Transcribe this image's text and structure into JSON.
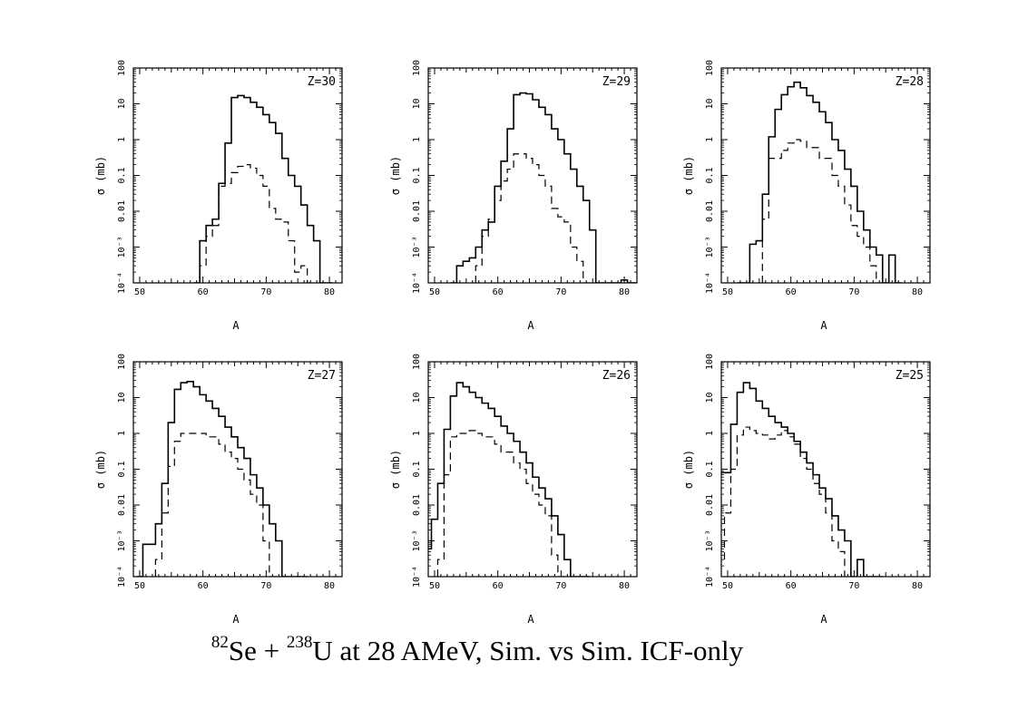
{
  "caption": {
    "se_mass": "82",
    "se_symbol": "Se + ",
    "u_mass": "238",
    "u_rest": "U at 28 AMeV, Sim. vs Sim. ICF-only"
  },
  "chart_data": [
    {
      "type": "line",
      "panel_label": "Z=30",
      "xlabel": "A",
      "ylabel": "σ (mb)",
      "xlim": [
        49,
        82
      ],
      "ylim": [
        0.0001,
        100
      ],
      "yscale": "log",
      "x_ticks": [
        50,
        60,
        70,
        80
      ],
      "y_ticks": [
        "10⁻⁴",
        "10⁻³",
        "0.01",
        "0.1",
        "1",
        "10",
        "100"
      ],
      "series": [
        {
          "style": "solid",
          "x": [
            59,
            60,
            61,
            62,
            63,
            64,
            65,
            66,
            67,
            68,
            69,
            70,
            71,
            72,
            73,
            74,
            75,
            76,
            77,
            78,
            79,
            80
          ],
          "y": [
            0.0001,
            0.0015,
            0.004,
            0.006,
            0.06,
            0.8,
            15,
            17,
            15,
            11,
            8,
            5,
            3,
            1.5,
            0.3,
            0.1,
            0.05,
            0.015,
            0.004,
            0.0015,
            0.0001,
            0.0001
          ]
        },
        {
          "style": "dashed",
          "x": [
            60,
            61,
            62,
            63,
            64,
            65,
            66,
            67,
            68,
            69,
            70,
            71,
            72,
            73,
            74,
            75,
            76,
            77
          ],
          "y": [
            0.0003,
            0.002,
            0.004,
            0.05,
            0.06,
            0.12,
            0.18,
            0.2,
            0.16,
            0.1,
            0.05,
            0.012,
            0.006,
            0.005,
            0.0015,
            0.0002,
            0.0003,
            0.0001
          ]
        }
      ]
    },
    {
      "type": "line",
      "panel_label": "Z=29",
      "xlabel": "A",
      "ylabel": "σ (mb)",
      "xlim": [
        49,
        82
      ],
      "ylim": [
        0.0001,
        100
      ],
      "yscale": "log",
      "x_ticks": [
        50,
        60,
        70,
        80
      ],
      "y_ticks": [
        "10⁻⁴",
        "10⁻³",
        "0.01",
        "0.1",
        "1",
        "10",
        "100"
      ],
      "series": [
        {
          "style": "solid",
          "x": [
            53,
            54,
            55,
            56,
            57,
            58,
            59,
            60,
            61,
            62,
            63,
            64,
            65,
            66,
            67,
            68,
            69,
            70,
            71,
            72,
            73,
            74,
            75,
            76,
            77,
            78,
            79,
            80,
            81,
            82
          ],
          "y": [
            0.0001,
            0.0003,
            0.0004,
            0.0005,
            0.001,
            0.003,
            0.005,
            0.05,
            0.25,
            2,
            18,
            20,
            19,
            13,
            8,
            5,
            2,
            1,
            0.4,
            0.15,
            0.05,
            0.02,
            0.003,
            0.0001,
            0.0001,
            0.0001,
            0.0001,
            0.00012,
            0.0001,
            0.0001
          ]
        },
        {
          "style": "dashed",
          "x": [
            57,
            58,
            59,
            60,
            61,
            62,
            63,
            64,
            65,
            66,
            67,
            68,
            69,
            70,
            71,
            72,
            73,
            74,
            75
          ],
          "y": [
            0.0003,
            0.002,
            0.006,
            0.02,
            0.07,
            0.15,
            0.4,
            0.4,
            0.3,
            0.2,
            0.1,
            0.05,
            0.012,
            0.007,
            0.005,
            0.001,
            0.0004,
            0.0001,
            0.0001
          ]
        }
      ]
    },
    {
      "type": "line",
      "panel_label": "Z=28",
      "xlabel": "A",
      "ylabel": "σ (mb)",
      "xlim": [
        49,
        82
      ],
      "ylim": [
        0.0001,
        100
      ],
      "yscale": "log",
      "x_ticks": [
        50,
        60,
        70,
        80
      ],
      "y_ticks": [
        "10⁻⁴",
        "10⁻³",
        "0.01",
        "0.1",
        "1",
        "10",
        "100"
      ],
      "series": [
        {
          "style": "solid",
          "x": [
            52,
            53,
            54,
            55,
            56,
            57,
            58,
            59,
            60,
            61,
            62,
            63,
            64,
            65,
            66,
            67,
            68,
            69,
            70,
            71,
            72,
            73,
            74,
            75,
            76,
            77
          ],
          "y": [
            0.0001,
            0.0001,
            0.0012,
            0.0015,
            0.03,
            1.2,
            7,
            18,
            30,
            40,
            28,
            17,
            11,
            6,
            3,
            1,
            0.5,
            0.15,
            0.05,
            0.01,
            0.003,
            0.001,
            0.0006,
            0.0001,
            0.0006,
            0.0001
          ]
        },
        {
          "style": "dashed",
          "x": [
            56,
            57,
            58,
            59,
            60,
            61,
            62,
            63,
            64,
            65,
            66,
            67,
            68,
            69,
            70,
            71,
            72,
            73,
            74
          ],
          "y": [
            0.006,
            0.3,
            0.3,
            0.5,
            0.8,
            1,
            0.9,
            0.6,
            0.6,
            0.3,
            0.3,
            0.1,
            0.05,
            0.015,
            0.004,
            0.002,
            0.001,
            0.0003,
            0.0001
          ]
        }
      ]
    },
    {
      "type": "line",
      "panel_label": "Z=27",
      "xlabel": "A",
      "ylabel": "σ (mb)",
      "xlim": [
        49,
        82
      ],
      "ylim": [
        0.0001,
        100
      ],
      "yscale": "log",
      "x_ticks": [
        50,
        60,
        70,
        80
      ],
      "y_ticks": [
        "10⁻⁴",
        "10⁻³",
        "0.01",
        "0.1",
        "1",
        "10",
        "100"
      ],
      "series": [
        {
          "style": "solid",
          "x": [
            50,
            51,
            52,
            53,
            54,
            55,
            56,
            57,
            58,
            59,
            60,
            61,
            62,
            63,
            64,
            65,
            66,
            67,
            68,
            69,
            70,
            71,
            72,
            73,
            74,
            75,
            76
          ],
          "y": [
            0.0001,
            0.0008,
            0.0008,
            0.003,
            0.04,
            2,
            17,
            26,
            28,
            20,
            12,
            8,
            5,
            3,
            1.5,
            0.8,
            0.4,
            0.2,
            0.07,
            0.03,
            0.01,
            0.003,
            0.001,
            0.0001,
            0.0001,
            0.0001,
            0.0001
          ]
        },
        {
          "style": "dashed",
          "x": [
            53,
            54,
            55,
            56,
            57,
            58,
            59,
            60,
            61,
            62,
            63,
            64,
            65,
            66,
            67,
            68,
            69,
            70,
            71,
            72
          ],
          "y": [
            0.0003,
            0.006,
            0.12,
            0.6,
            1,
            1,
            1,
            1,
            0.8,
            0.8,
            0.5,
            0.3,
            0.2,
            0.1,
            0.05,
            0.02,
            0.01,
            0.001,
            0.0001,
            0.0001
          ]
        }
      ]
    },
    {
      "type": "line",
      "panel_label": "Z=26",
      "xlabel": "A",
      "ylabel": "σ (mb)",
      "xlim": [
        49,
        82
      ],
      "ylim": [
        0.0001,
        100
      ],
      "yscale": "log",
      "x_ticks": [
        50,
        60,
        70,
        80
      ],
      "y_ticks": [
        "10⁻⁴",
        "10⁻³",
        "0.01",
        "0.1",
        "1",
        "10",
        "100"
      ],
      "series": [
        {
          "style": "solid",
          "x": [
            49,
            50,
            51,
            52,
            53,
            54,
            55,
            56,
            57,
            58,
            59,
            60,
            61,
            62,
            63,
            64,
            65,
            66,
            67,
            68,
            69,
            70,
            71,
            72,
            73,
            74
          ],
          "y": [
            0.0006,
            0.004,
            0.04,
            1.3,
            11,
            26,
            20,
            14,
            10,
            7,
            5,
            3,
            1.6,
            1,
            0.6,
            0.3,
            0.15,
            0.06,
            0.03,
            0.015,
            0.005,
            0.0015,
            0.0003,
            0.0001,
            0.0001,
            0.0001
          ]
        },
        {
          "style": "dashed",
          "x": [
            51,
            52,
            53,
            54,
            55,
            56,
            57,
            58,
            59,
            60,
            61,
            62,
            63,
            64,
            65,
            66,
            67,
            68,
            69,
            70,
            71
          ],
          "y": [
            0.0003,
            0.07,
            0.8,
            1,
            1,
            1.2,
            1,
            0.8,
            0.8,
            0.5,
            0.3,
            0.3,
            0.15,
            0.1,
            0.04,
            0.02,
            0.01,
            0.005,
            0.0004,
            0.0001,
            0.0001
          ]
        }
      ]
    },
    {
      "type": "line",
      "panel_label": "Z=25",
      "xlabel": "A",
      "ylabel": "σ (mb)",
      "xlim": [
        49,
        82
      ],
      "ylim": [
        0.0001,
        100
      ],
      "yscale": "log",
      "x_ticks": [
        50,
        60,
        70,
        80
      ],
      "y_ticks": [
        "10⁻⁴",
        "10⁻³",
        "0.01",
        "0.1",
        "1",
        "10",
        "100"
      ],
      "series": [
        {
          "style": "solid",
          "x": [
            49,
            50,
            51,
            52,
            53,
            54,
            55,
            56,
            57,
            58,
            59,
            60,
            61,
            62,
            63,
            64,
            65,
            66,
            67,
            68,
            69,
            70,
            71,
            72,
            73,
            74
          ],
          "y": [
            0.08,
            0.08,
            1.8,
            14,
            26,
            18,
            8,
            5,
            3,
            2,
            1.5,
            1,
            0.6,
            0.3,
            0.15,
            0.07,
            0.03,
            0.015,
            0.005,
            0.002,
            0.001,
            0.0001,
            0.0003,
            0.0001,
            0.0001,
            0.0001
          ]
        },
        {
          "style": "dashed",
          "x": [
            49,
            50,
            51,
            52,
            53,
            54,
            55,
            56,
            57,
            58,
            59,
            60,
            61,
            62,
            63,
            64,
            65,
            66,
            67,
            68,
            69
          ],
          "y": [
            0.0003,
            0.006,
            0.1,
            0.9,
            1.5,
            1.2,
            1,
            0.9,
            0.7,
            0.9,
            1.2,
            0.8,
            0.5,
            0.2,
            0.1,
            0.04,
            0.02,
            0.006,
            0.001,
            0.0005,
            0.0001
          ]
        }
      ]
    }
  ]
}
